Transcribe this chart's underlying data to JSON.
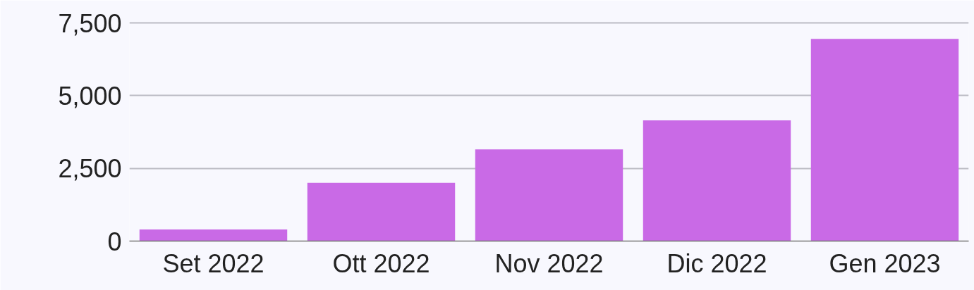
{
  "chart_data": {
    "type": "bar",
    "categories": [
      "Set 2022",
      "Ott 2022",
      "Nov 2022",
      "Dic 2022",
      "Gen 2023"
    ],
    "values": [
      400,
      2000,
      3150,
      4150,
      6950
    ],
    "color": "#c96ae6",
    "ylim": [
      0,
      7600
    ],
    "yticks": [
      0,
      {
        "value": 2500,
        "label": "2,500"
      },
      {
        "value": 5000,
        "label": "5,000"
      },
      {
        "value": 7500,
        "label": "7,500"
      }
    ],
    "grid": "y"
  }
}
